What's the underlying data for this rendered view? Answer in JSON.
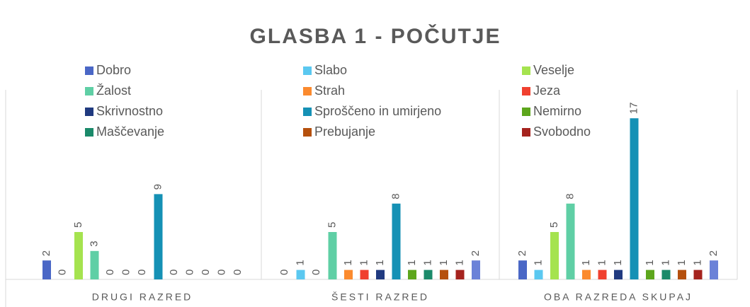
{
  "chart_data": {
    "type": "bar",
    "title": "GLASBA 1 - POČUTJE",
    "categories": [
      "DRUGI RAZRED",
      "ŠESTI RAZRED",
      "OBA RAZREDA SKUPAJ"
    ],
    "ylim": [
      0,
      20
    ],
    "series": [
      {
        "name": "Dobro",
        "color": "#4a67c6",
        "values": [
          2,
          0,
          2
        ]
      },
      {
        "name": "Slabo",
        "color": "#5bc8f0",
        "values": [
          0,
          1,
          1
        ]
      },
      {
        "name": "Veselje",
        "color": "#a5e34f",
        "values": [
          5,
          0,
          5
        ]
      },
      {
        "name": "Žalost",
        "color": "#5fcfa5",
        "values": [
          3,
          5,
          8
        ]
      },
      {
        "name": "Strah",
        "color": "#fb8a2e",
        "values": [
          0,
          1,
          1
        ]
      },
      {
        "name": "Jeza",
        "color": "#f0402f",
        "values": [
          0,
          1,
          1
        ]
      },
      {
        "name": "Skrivnostno",
        "color": "#203a80",
        "values": [
          0,
          1,
          1
        ]
      },
      {
        "name": "Sproščeno in umirjeno",
        "color": "#1591b5",
        "values": [
          9,
          8,
          17
        ]
      },
      {
        "name": "Nemirno",
        "color": "#5da61c",
        "values": [
          0,
          1,
          1
        ]
      },
      {
        "name": "Maščevanje",
        "color": "#1b8a6a",
        "values": [
          0,
          1,
          1
        ]
      },
      {
        "name": "Prebujanje",
        "color": "#b5500d",
        "values": [
          0,
          1,
          1
        ]
      },
      {
        "name": "Svobodno",
        "color": "#a5231e",
        "values": [
          0,
          1,
          1
        ]
      },
      {
        "color": "#6b82d8",
        "values": [
          0,
          2,
          2
        ]
      }
    ]
  }
}
